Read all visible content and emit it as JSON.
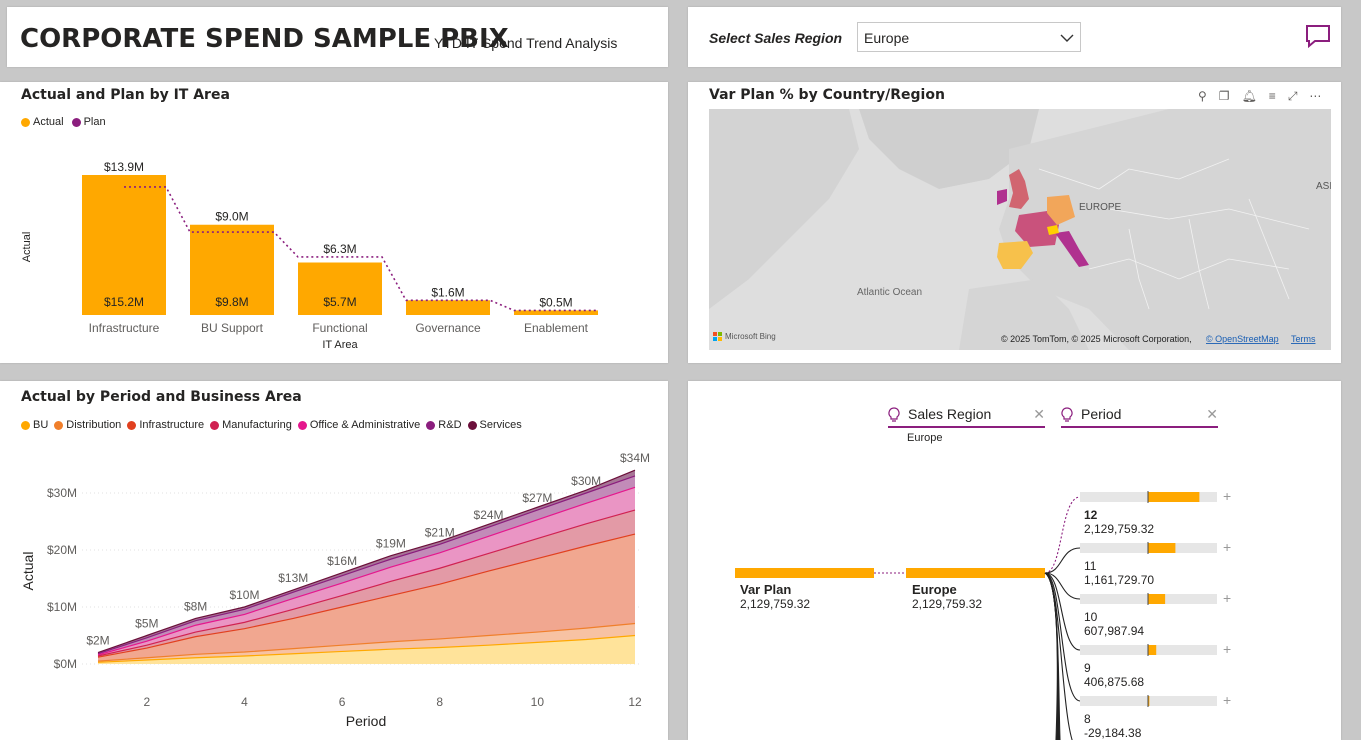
{
  "header": {
    "title": "CORPORATE SPEND SAMPLE PBIX",
    "subtitle": "YTD IT Spend Trend Analysis"
  },
  "slicer": {
    "label": "Select Sales Region",
    "selected": "Europe"
  },
  "colors": {
    "actual": "#FFA800",
    "plan": "#8B1E7E",
    "accent": "#8B1E7E"
  },
  "bar_chart": {
    "title": "Actual and Plan by IT Area",
    "legend": [
      "Actual",
      "Plan"
    ],
    "ylabel": "Actual",
    "xlabel_line1": "Functional",
    "xlabel_line2": "IT Area",
    "chart_data": {
      "type": "bar",
      "categories": [
        "Infrastructure",
        "BU Support",
        "Functional",
        "Governance",
        "Enablement"
      ],
      "series": [
        {
          "name": "Actual",
          "values": [
            15.2,
            9.8,
            5.7,
            1.6,
            0.5
          ]
        },
        {
          "name": "Plan",
          "values": [
            13.9,
            9.0,
            6.3,
            1.6,
            0.5
          ]
        }
      ],
      "actual_labels": [
        "$15.2M",
        "$9.8M",
        "$5.7M",
        "",
        ""
      ],
      "top_labels": [
        "$13.9M",
        "$9.0M",
        "$6.3M",
        "$1.6M",
        "$0.5M"
      ]
    }
  },
  "map": {
    "title": "Var Plan % by Country/Region",
    "labels": [
      "EUROPE",
      "Atlantic Ocean",
      "ASI"
    ],
    "bing": "Microsoft Bing",
    "copyright": "© 2025 TomTom, © 2025 Microsoft Corporation,",
    "osm": "© OpenStreetMap",
    "terms": "Terms",
    "icons": [
      "pin-icon",
      "copy-icon",
      "bell-icon",
      "filter-icon",
      "focus-icon",
      "more-icon"
    ]
  },
  "area_chart": {
    "title": "Actual by Period and Business Area",
    "xlabel": "Period",
    "ylabel": "Actual",
    "legend": [
      "BU",
      "Distribution",
      "Infrastructure",
      "Manufacturing",
      "Office & Administrative",
      "R&D",
      "Services"
    ],
    "legend_colors": [
      "#FFA800",
      "#F07F2B",
      "#E1401F",
      "#D02252",
      "#E5178D",
      "#8B1E7E",
      "#6B0F3A"
    ],
    "chart_data": {
      "type": "area",
      "x": [
        1,
        2,
        3,
        4,
        5,
        6,
        7,
        8,
        9,
        10,
        11,
        12
      ],
      "xticks": [
        2,
        4,
        6,
        8,
        10,
        12
      ],
      "yticks": [
        "$0M",
        "$10M",
        "$20M",
        "$30M"
      ],
      "ylim": [
        0,
        35
      ],
      "totals": [
        2,
        5,
        8,
        10,
        13,
        16,
        19,
        21,
        24,
        27,
        30,
        34
      ],
      "total_labels": [
        "$2M",
        "$5M",
        "$8M",
        "$10M",
        "$13M",
        "$16M",
        "$19M",
        "$21M",
        "$24M",
        "$27M",
        "$30M",
        "$34M"
      ],
      "cumulative": [
        [
          0.3,
          0.7,
          1.1,
          1.4,
          1.8,
          2.2,
          2.6,
          2.9,
          3.3,
          3.8,
          4.3,
          5.0
        ],
        [
          0.5,
          1.1,
          1.7,
          2.1,
          2.7,
          3.3,
          3.9,
          4.4,
          5.0,
          5.6,
          6.3,
          7.1
        ],
        [
          1.2,
          2.8,
          4.8,
          6.2,
          8.0,
          10.0,
          12.0,
          14.0,
          16.3,
          18.5,
          20.7,
          22.8
        ],
        [
          1.4,
          3.3,
          5.6,
          7.3,
          9.6,
          12.0,
          14.5,
          16.8,
          19.4,
          22.0,
          24.6,
          27.0
        ],
        [
          1.6,
          4.0,
          6.8,
          8.7,
          11.5,
          14.2,
          17.0,
          19.5,
          22.4,
          25.3,
          28.2,
          31.0
        ],
        [
          1.8,
          4.6,
          7.6,
          9.6,
          12.6,
          15.5,
          18.4,
          21.0,
          24.0,
          27.0,
          30.0,
          33.0
        ],
        [
          2.0,
          5.0,
          8.0,
          10.0,
          13.0,
          16.0,
          19.0,
          21.5,
          24.5,
          27.5,
          30.5,
          34.0
        ]
      ]
    }
  },
  "decomp_tree": {
    "field1": "Sales Region",
    "field1_value": "Europe",
    "field2": "Period",
    "root_label": "Var Plan",
    "root_value": "2,129,759.32",
    "level1_label": "Europe",
    "level1_value": "2,129,759.32",
    "nodes": [
      {
        "label": "",
        "value": "",
        "fraction": 0.75
      },
      {
        "label": "12",
        "value": "2,129,759.32",
        "fraction": 0.4
      },
      {
        "label": "11",
        "value": "1,161,729.70",
        "fraction": 0.25
      },
      {
        "label": "10",
        "value": "607,987.94",
        "fraction": 0.12
      },
      {
        "label": "9",
        "value": "406,875.68",
        "fraction": 0.02
      },
      {
        "label": "8",
        "value": "-29,184.38",
        "fraction": 0.0
      }
    ]
  }
}
